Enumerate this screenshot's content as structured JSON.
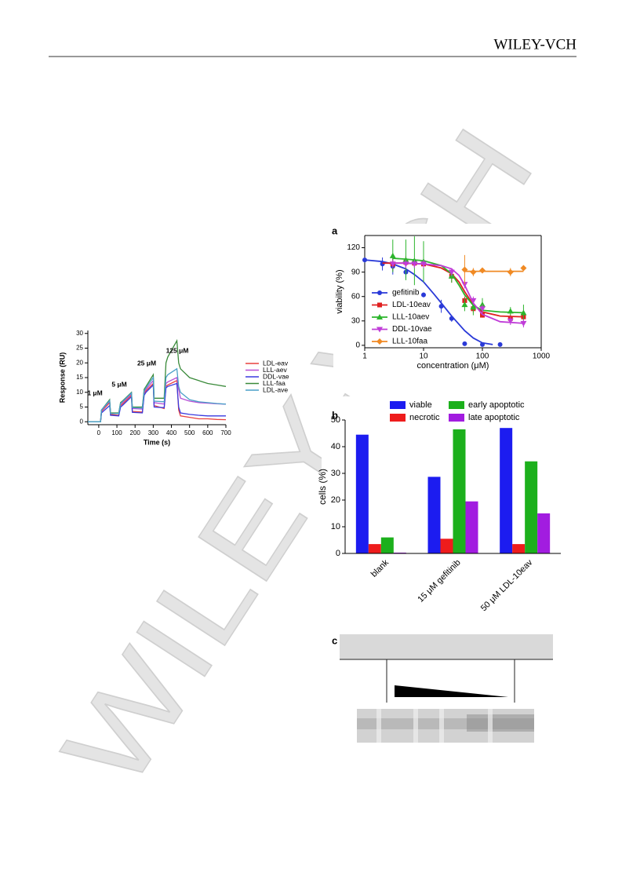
{
  "header": {
    "publisher": "WILEY-VCH",
    "watermark": "WILEY-VCH"
  },
  "panel_c": {
    "label": "c"
  },
  "chart_data": [
    {
      "type": "line",
      "x_label": "Time (s)",
      "y_label": "Response (RU)",
      "xlim": [
        -60,
        700
      ],
      "xticks": [
        0,
        100,
        200,
        300,
        400,
        500,
        600,
        700
      ],
      "ylim": [
        -1,
        31
      ],
      "yticks": [
        0,
        5,
        10,
        15,
        20,
        25,
        30
      ],
      "annotations": [
        "1 μM",
        "5 μM",
        "25 μM",
        "125 μM"
      ],
      "x": [
        -60,
        0,
        10,
        15,
        60,
        65,
        110,
        120,
        130,
        180,
        185,
        240,
        250,
        260,
        300,
        305,
        360,
        370,
        380,
        430,
        440,
        450,
        500,
        550,
        600,
        650,
        700
      ],
      "series": [
        {
          "name": "LDL-eav",
          "color": "#e8413f",
          "values": [
            0,
            0,
            0,
            3.5,
            6.5,
            2.5,
            2.2,
            5.5,
            6.0,
            9.0,
            3.5,
            3.3,
            9.5,
            10.5,
            13.0,
            5.5,
            4.5,
            12.0,
            12.5,
            14.0,
            4.0,
            2.0,
            1.5,
            1.0,
            1.0,
            0.8,
            0.7
          ]
        },
        {
          "name": "LLL-aev",
          "color": "#b84fd6",
          "values": [
            0,
            0,
            0,
            3.8,
            7.0,
            3.0,
            2.8,
            6.0,
            6.5,
            9.5,
            4.5,
            4.3,
            10.0,
            11.0,
            14.0,
            6.5,
            6.0,
            13.0,
            13.5,
            15.0,
            11.0,
            8.0,
            7.0,
            6.5,
            6.3,
            6.1,
            6.0
          ]
        },
        {
          "name": "DDL-vae",
          "color": "#3a3adf",
          "values": [
            0,
            0,
            0,
            3.0,
            5.5,
            2.2,
            2.0,
            5.0,
            5.5,
            8.5,
            3.2,
            3.0,
            9.0,
            10.0,
            12.5,
            5.0,
            4.8,
            11.5,
            12.0,
            13.0,
            5.0,
            3.0,
            2.5,
            2.2,
            2.0,
            2.0,
            2.0
          ]
        },
        {
          "name": "LLL-faa",
          "color": "#3a8a3a",
          "values": [
            0,
            0,
            0,
            4.0,
            7.5,
            3.0,
            3.0,
            6.5,
            7.0,
            10.0,
            5.0,
            5.0,
            11.0,
            12.0,
            16.0,
            8.0,
            8.0,
            20.0,
            22.0,
            27.5,
            20.0,
            18.0,
            15.0,
            14.0,
            13.0,
            12.5,
            12.0
          ]
        },
        {
          "name": "LDL-ave",
          "color": "#4a9fc8",
          "values": [
            0,
            0,
            0,
            4.0,
            7.2,
            2.8,
            2.8,
            6.2,
            6.8,
            9.8,
            4.8,
            4.6,
            10.5,
            11.5,
            15.0,
            7.0,
            6.8,
            15.0,
            16.0,
            18.0,
            12.0,
            10.0,
            7.5,
            6.8,
            6.5,
            6.2,
            6.0
          ]
        }
      ]
    },
    {
      "type": "scatter",
      "panel": "a",
      "x_label": "concentration (μM)",
      "y_label": "viability (%)",
      "log_x": true,
      "xlim": [
        1,
        1000
      ],
      "xticks": [
        1,
        10,
        100,
        1000
      ],
      "ylim": [
        -3,
        135
      ],
      "yticks": [
        0,
        30,
        60,
        90,
        120
      ],
      "series": [
        {
          "name": "gefitinib",
          "color": "#2a3ad8",
          "marker": "circle",
          "x": [
            1,
            2,
            3,
            5,
            10,
            20,
            30,
            50,
            100,
            200
          ],
          "values": [
            105,
            100,
            97,
            90,
            62,
            48,
            33,
            2,
            1,
            1
          ],
          "errors": [
            3,
            8,
            10,
            8,
            3,
            8,
            4,
            0,
            0,
            0
          ],
          "fit_x": [
            1,
            2,
            3,
            5,
            7,
            10,
            15,
            20,
            30,
            50,
            70,
            100,
            150
          ],
          "fit_values": [
            105,
            103,
            100,
            94,
            87,
            78,
            63,
            52,
            36,
            18,
            9,
            3,
            1
          ]
        },
        {
          "name": "LDL-10eav",
          "color": "#e02020",
          "marker": "square",
          "x": [
            3,
            5,
            7,
            10,
            30,
            50,
            70,
            100,
            300,
            500
          ],
          "values": [
            100,
            102,
            101,
            100,
            85,
            55,
            45,
            37,
            33,
            35
          ],
          "errors": [
            8,
            8,
            5,
            8,
            8,
            5,
            5,
            3,
            5,
            5
          ],
          "fit_x": [
            2,
            5,
            10,
            20,
            30,
            40,
            50,
            70,
            100,
            200,
            500
          ],
          "fit_values": [
            101,
            101,
            100,
            95,
            88,
            78,
            66,
            50,
            41,
            36,
            35
          ]
        },
        {
          "name": "LLL-10aev",
          "color": "#2cb52c",
          "marker": "triangle-up",
          "x": [
            3,
            5,
            7,
            10,
            30,
            50,
            70,
            100,
            300,
            500
          ],
          "values": [
            110,
            105,
            104,
            103,
            85,
            50,
            47,
            50,
            42,
            40
          ],
          "errors": [
            20,
            25,
            30,
            25,
            8,
            8,
            10,
            8,
            5,
            10
          ],
          "fit_x": [
            3,
            5,
            10,
            20,
            30,
            40,
            50,
            70,
            100,
            200,
            500
          ],
          "fit_values": [
            107,
            106,
            104,
            98,
            88,
            74,
            62,
            49,
            43,
            41,
            40
          ]
        },
        {
          "name": "DDL-10vae",
          "color": "#c03cd8",
          "marker": "triangle-down",
          "x": [
            3,
            5,
            7,
            10,
            30,
            50,
            70,
            100,
            300,
            500
          ],
          "values": [
            100,
            100,
            100,
            100,
            90,
            75,
            55,
            45,
            30,
            27
          ],
          "errors": [
            5,
            5,
            5,
            5,
            5,
            5,
            5,
            5,
            5,
            5
          ],
          "fit_x": [
            3,
            5,
            10,
            20,
            30,
            40,
            50,
            70,
            100,
            200,
            500
          ],
          "fit_values": [
            101,
            101,
            100,
            98,
            94,
            86,
            74,
            52,
            38,
            29,
            27
          ]
        },
        {
          "name": "LLL-10faa",
          "color": "#f08a24",
          "marker": "diamond",
          "x": [
            50,
            70,
            100,
            300,
            500
          ],
          "values": [
            93,
            90,
            92,
            90,
            95
          ],
          "errors": [
            18,
            5,
            3,
            5,
            3
          ],
          "fit_x": [
            50,
            500
          ],
          "fit_values": [
            91,
            91
          ]
        }
      ]
    },
    {
      "type": "bar",
      "panel": "b",
      "y_label": "cells (%)",
      "categories": [
        "blank",
        "15 μM gefitinib",
        "50 μM LDL-10eav"
      ],
      "ylim": [
        0,
        50
      ],
      "yticks": [
        0,
        10,
        20,
        30,
        40,
        50
      ],
      "series": [
        {
          "name": "viable",
          "color": "#1c1cf0",
          "values": [
            44.5,
            28.7,
            47
          ]
        },
        {
          "name": "necrotic",
          "color": "#ee1c1c",
          "values": [
            3.5,
            5.5,
            3.5
          ]
        },
        {
          "name": "early apoptotic",
          "color": "#1cb01c",
          "values": [
            6,
            46.5,
            34.5
          ]
        },
        {
          "name": "late apoptotic",
          "color": "#a21ce0",
          "values": [
            0.3,
            19.5,
            15
          ]
        }
      ]
    }
  ]
}
